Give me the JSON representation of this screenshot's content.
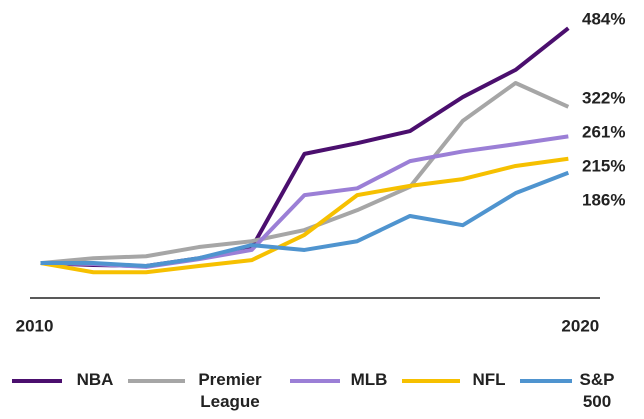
{
  "chart_data": {
    "type": "line",
    "x": [
      2010,
      2011,
      2012,
      2013,
      2014,
      2015,
      2016,
      2017,
      2018,
      2019,
      2020
    ],
    "xlim": [
      2009.8,
      2020.6
    ],
    "xticks": [
      2010,
      2020
    ],
    "ylim": [
      -72,
      542
    ],
    "series": [
      {
        "name": "NBA",
        "color": "#4b0f6e",
        "values": [
          0,
          -4,
          -6,
          10,
          31,
          225,
          247,
          272,
          342,
          398,
          484
        ],
        "value_labels": [
          null,
          null,
          null,
          null,
          null,
          null,
          null,
          null,
          null,
          null,
          "484%"
        ]
      },
      {
        "name": "Premier League",
        "color": "#a6a6a6",
        "values": [
          0,
          10,
          14,
          33,
          45,
          68,
          109,
          157,
          293,
          371,
          322
        ],
        "value_labels": [
          null,
          null,
          null,
          null,
          null,
          null,
          null,
          null,
          null,
          null,
          "322%"
        ]
      },
      {
        "name": "MLB",
        "color": "#9b7fd6",
        "values": [
          0,
          -2,
          -8,
          8,
          27,
          140,
          154,
          210,
          230,
          245,
          261
        ],
        "value_labels": [
          null,
          null,
          null,
          null,
          null,
          null,
          null,
          null,
          null,
          null,
          "261%"
        ]
      },
      {
        "name": "NFL",
        "color": "#f6c000",
        "values": [
          0,
          -19,
          -19,
          -6,
          6,
          58,
          140,
          159,
          173,
          200,
          215
        ],
        "value_labels": [
          null,
          null,
          null,
          null,
          null,
          null,
          null,
          null,
          null,
          null,
          "215%"
        ]
      },
      {
        "name": "S&P 500",
        "color": "#4f94cf",
        "values": [
          0,
          0,
          -6,
          10,
          37,
          27,
          45,
          97,
          78,
          144,
          186
        ],
        "value_labels": [
          null,
          null,
          null,
          null,
          null,
          null,
          null,
          null,
          null,
          null,
          "186%"
        ]
      }
    ]
  }
}
